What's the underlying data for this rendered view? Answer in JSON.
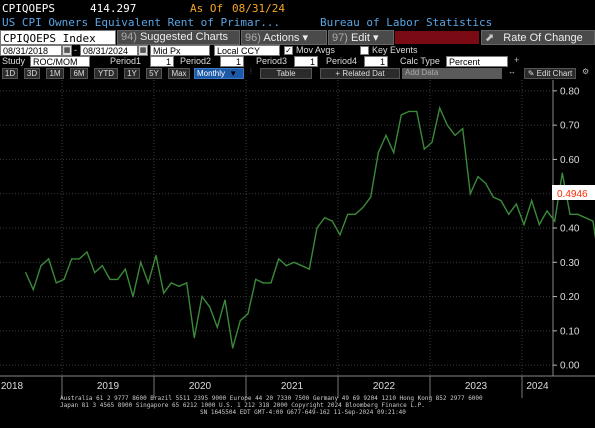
{
  "header": {
    "ticker": "CPIQOEPS",
    "last_value": "414.297",
    "as_of_label": "As Of",
    "as_of_date": "08/31/24",
    "description": "US CPI Owners Equivalent Rent of Primar...",
    "source": "Bureau of Labor Statistics"
  },
  "toolbar": {
    "security": "CPIQOEPS Index",
    "suggested_key": "94)",
    "suggested_label": "Suggested Charts",
    "actions_key": "96)",
    "actions_label": "Actions",
    "edit_key": "97)",
    "edit_label": "Edit",
    "rate_of_change": "Rate Of Change"
  },
  "controls": {
    "start_date": "08/31/2018",
    "end_date": "08/31/2024",
    "price_field": "Mid Px",
    "currency": "Local CCY",
    "mov_avgs_label": "Mov Avgs",
    "mov_avgs_checked": true,
    "key_events_label": "Key Events",
    "key_events_checked": false
  },
  "study": {
    "label": "Study",
    "type": "ROC/MOM",
    "period1_label": "Period1",
    "period1": "1",
    "period2_label": "Period2",
    "period2": "1",
    "period3_label": "Period3",
    "period3": "1",
    "period4_label": "Period4",
    "period4": "1",
    "calc_type_label": "Calc Type",
    "calc_type": "Percent"
  },
  "range_bar": {
    "buttons": [
      "1D",
      "3D",
      "1M",
      "6M",
      "YTD",
      "1Y",
      "5Y",
      "Max"
    ],
    "frequency": "Monthly",
    "table_label": "Table",
    "related_data_label": "Related Dat",
    "add_data_label": "Add Data",
    "edit_chart_label": "Edit Chart"
  },
  "colors": {
    "line": "#3a8a3a",
    "last_label_bg": "#ffffff",
    "last_label_fg": "#ff2a00",
    "amber": "#f5a623",
    "blue": "#5aa5e6"
  },
  "chart_data": {
    "type": "line",
    "y_ticks": [
      "0.00",
      "0.10",
      "0.20",
      "0.30",
      "0.40",
      "0.50",
      "0.60",
      "0.70",
      "0.80"
    ],
    "ylim": [
      -0.02,
      0.82
    ],
    "x_year_labels": [
      "2018",
      "2019",
      "2020",
      "2021",
      "2022",
      "2023",
      "2024"
    ],
    "last_value_label": "0.4946",
    "start": "2018-08",
    "values": [
      0.27,
      0.22,
      0.29,
      0.31,
      0.24,
      0.25,
      0.31,
      0.31,
      0.33,
      0.27,
      0.29,
      0.25,
      0.25,
      0.28,
      0.2,
      0.3,
      0.24,
      0.32,
      0.21,
      0.24,
      0.23,
      0.24,
      0.08,
      0.2,
      0.17,
      0.11,
      0.19,
      0.05,
      0.13,
      0.15,
      0.25,
      0.24,
      0.24,
      0.31,
      0.29,
      0.3,
      0.29,
      0.28,
      0.4,
      0.43,
      0.42,
      0.38,
      0.44,
      0.44,
      0.46,
      0.49,
      0.62,
      0.67,
      0.62,
      0.73,
      0.74,
      0.74,
      0.63,
      0.65,
      0.75,
      0.7,
      0.67,
      0.69,
      0.5,
      0.55,
      0.53,
      0.49,
      0.48,
      0.44,
      0.47,
      0.41,
      0.48,
      0.41,
      0.45,
      0.42,
      0.56,
      0.44,
      0.44,
      0.43,
      0.42,
      0.27,
      0.36,
      0.4946
    ]
  },
  "footer": {
    "line1": "Australia 61 2 9777 8600  Brazil 5511 2395 9000  Europe 44 20 7330 7500  Germany 49 69 9204 1210  Hong Kong 852 2977 6000",
    "line2": "Japan 81 3 4565 8900        Singapore 65 6212 1000        U.S. 1 212 318 2000              Copyright 2024 Bloomberg Finance L.P.",
    "line3": "SN 1645504 EDT  GMT-4:00 G677-649-162  11-Sep-2024  09:21:40"
  }
}
